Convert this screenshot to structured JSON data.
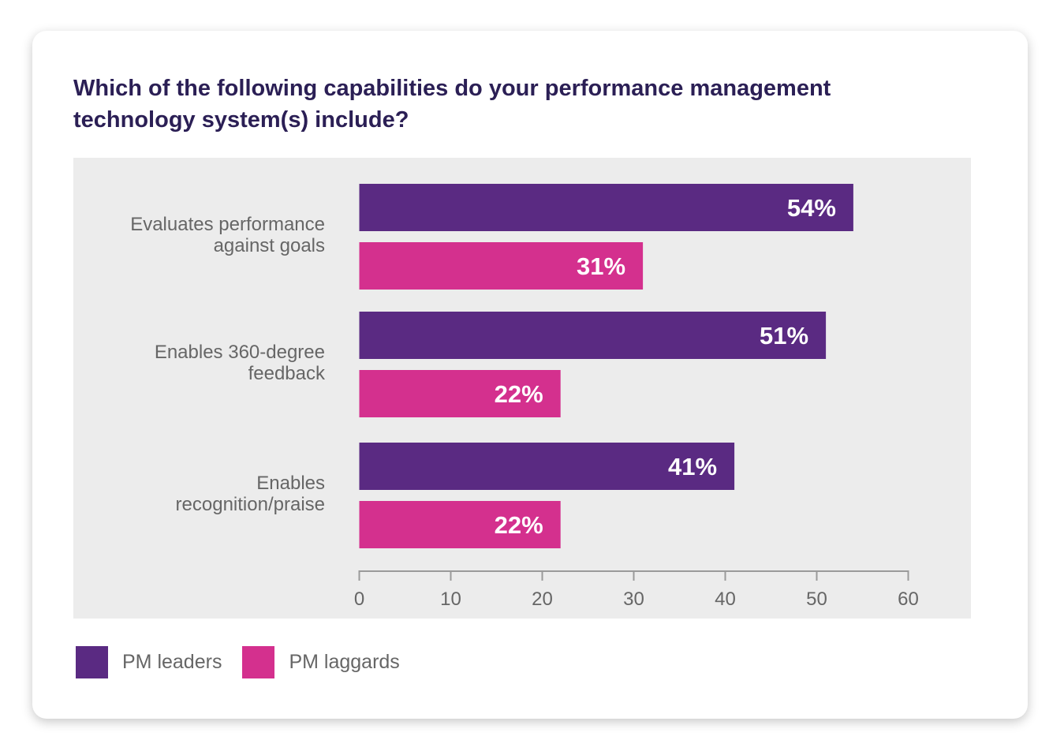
{
  "chart_data": {
    "type": "bar",
    "orientation": "horizontal",
    "title": "Which of the following capabilities do your performance management technology system(s) include?",
    "categories": [
      [
        "Evaluates performance",
        "against goals"
      ],
      [
        "Enables 360-degree",
        "feedback"
      ],
      [
        "Enables",
        "recognition/praise"
      ]
    ],
    "series": [
      {
        "name": "PM leaders",
        "color": "#5a2a82",
        "values": [
          54,
          51,
          41
        ],
        "labels": [
          "54%",
          "51%",
          "41%"
        ]
      },
      {
        "name": "PM laggards",
        "color": "#d4308e",
        "values": [
          31,
          22,
          22
        ],
        "labels": [
          "31%",
          "22%",
          "22%"
        ]
      }
    ],
    "xlim": [
      0,
      60
    ],
    "xticks": [
      "0",
      "10",
      "20",
      "30",
      "40",
      "50",
      "60"
    ],
    "grid": false,
    "legend": "bottom-left"
  }
}
